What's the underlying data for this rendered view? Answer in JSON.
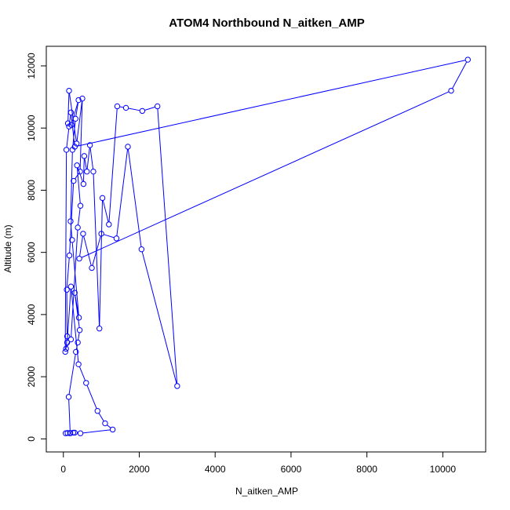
{
  "chart_data": {
    "type": "scatter",
    "title": "ATOM4 Northbound N_aitken_AMP",
    "xlabel": "N_aitken_AMP",
    "ylabel": "Altitude (m)",
    "xlim": [
      -450,
      11130
    ],
    "ylim": [
      -420,
      12630
    ],
    "xticks": [
      0,
      2000,
      4000,
      6000,
      8000,
      10000
    ],
    "yticks": [
      0,
      2000,
      4000,
      6000,
      8000,
      10000,
      12000
    ],
    "grid": false,
    "legend": "none",
    "series_color": "#0000ff",
    "connect_points": true,
    "x": [
      60,
      110,
      260,
      180,
      140,
      330,
      380,
      430,
      300,
      410,
      230,
      190,
      240,
      320,
      400,
      210,
      120,
      150,
      350,
      500,
      440,
      270,
      160,
      90,
      100,
      70,
      200,
      380,
      450,
      360,
      530,
      550,
      620,
      700,
      790,
      950,
      1030,
      1200,
      1420,
      1650,
      2080,
      2480,
      3000,
      2060,
      1700,
      1400,
      1000,
      750,
      520,
      420,
      10220,
      10660,
      300,
      200,
      150,
      80,
      50,
      100,
      200,
      400,
      600,
      900,
      1100,
      1300,
      450,
      300,
      180
    ],
    "y": [
      180,
      190,
      200,
      180,
      1350,
      2800,
      3100,
      3500,
      4700,
      3900,
      6400,
      7000,
      9300,
      10300,
      10900,
      10100,
      10150,
      11200,
      9500,
      10950,
      8600,
      8300,
      5900,
      4800,
      3300,
      2900,
      3200,
      6800,
      7500,
      8800,
      8200,
      9100,
      8600,
      9450,
      8600,
      3550,
      7750,
      6900,
      10700,
      10650,
      10550,
      10700,
      1700,
      6100,
      9400,
      6450,
      6600,
      5500,
      6600,
      5800,
      11200,
      12200,
      9400,
      10500,
      10050,
      9300,
      2800,
      3100,
      4900,
      2400,
      1800,
      900,
      500,
      300,
      180,
      200,
      190
    ]
  }
}
